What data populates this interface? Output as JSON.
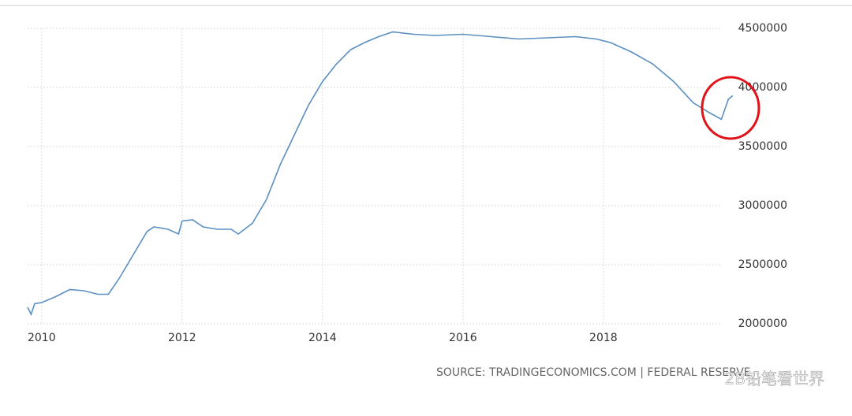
{
  "chart_data": {
    "type": "line",
    "x": [
      2009.8,
      2009.85,
      2009.9,
      2010.0,
      2010.2,
      2010.4,
      2010.6,
      2010.8,
      2010.95,
      2011.1,
      2011.3,
      2011.5,
      2011.6,
      2011.8,
      2011.95,
      2012.0,
      2012.15,
      2012.3,
      2012.5,
      2012.7,
      2012.8,
      2013.0,
      2013.2,
      2013.4,
      2013.6,
      2013.8,
      2014.0,
      2014.2,
      2014.4,
      2014.6,
      2014.8,
      2015.0,
      2015.3,
      2015.6,
      2016.0,
      2016.4,
      2016.8,
      2017.2,
      2017.6,
      2017.9,
      2018.1,
      2018.4,
      2018.7,
      2019.0,
      2019.28,
      2019.5,
      2019.68,
      2019.75,
      2019.78,
      2019.84
    ],
    "series": [
      {
        "color": "#5b8fc0",
        "values": [
          2140000,
          2080000,
          2170000,
          2180000,
          2230000,
          2290000,
          2280000,
          2250000,
          2250000,
          2380000,
          2580000,
          2780000,
          2820000,
          2800000,
          2760000,
          2870000,
          2880000,
          2820000,
          2800000,
          2800000,
          2760000,
          2850000,
          3050000,
          3350000,
          3600000,
          3850000,
          4050000,
          4200000,
          4320000,
          4380000,
          4430000,
          4470000,
          4450000,
          4440000,
          4450000,
          4430000,
          4410000,
          4420000,
          4430000,
          4410000,
          4380000,
          4300000,
          4200000,
          4050000,
          3870000,
          3790000,
          3730000,
          3850000,
          3900000,
          3930000
        ]
      }
    ],
    "xlim": [
      2009.8,
      2019.9
    ],
    "xticks": [
      2010,
      2012,
      2014,
      2016,
      2018
    ],
    "ylim": [
      2000000,
      4500000
    ],
    "yticks": [
      2000000,
      2500000,
      3000000,
      3500000,
      4000000,
      4500000
    ],
    "grid": true,
    "source": "SOURCE: TRADINGECONOMICS.COM | FEDERAL RESERVE",
    "watermark": "2B铅笔看世界"
  }
}
